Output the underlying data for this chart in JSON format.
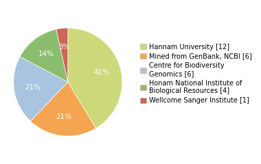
{
  "labels": [
    "Hannam University [12]",
    "Mined from GenBank, NCBI [6]",
    "Centre for Biodiversity\nGenomics [6]",
    "Honam National Institute of\nBiological Resources [4]",
    "Wellcome Sanger Institute [1]"
  ],
  "values": [
    12,
    6,
    6,
    4,
    1
  ],
  "colors": [
    "#cdd97a",
    "#f5a550",
    "#a8c4de",
    "#8cbd6e",
    "#cc6655"
  ],
  "background_color": "#ffffff",
  "text_color": "#ffffff",
  "startangle": 90,
  "fontsize": 7.5,
  "legend_fontsize": 7.0
}
